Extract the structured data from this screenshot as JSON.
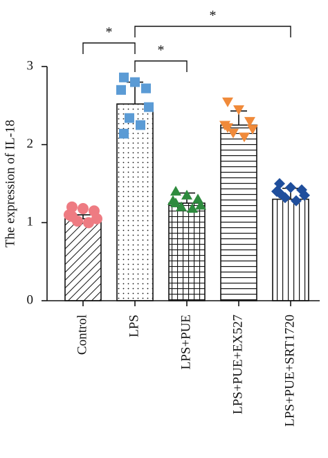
{
  "chart_data": {
    "type": "bar",
    "ylabel": "The expression of IL-18",
    "categories": [
      "Control",
      "LPS",
      "LPS+PUE",
      "LPS+PUE+EX527",
      "LPS+PUE+SRT1720"
    ],
    "values": [
      1.05,
      2.52,
      1.25,
      2.25,
      1.3
    ],
    "errors": [
      0.05,
      0.28,
      0.13,
      0.18,
      0.14
    ],
    "points": [
      [
        1.2,
        1.18,
        1.15,
        1.1,
        1.05,
        1.02,
        1.0,
        1.08
      ],
      [
        2.86,
        2.8,
        2.72,
        2.7,
        2.48,
        2.34,
        2.25,
        2.14
      ],
      [
        1.4,
        1.35,
        1.3,
        1.28,
        1.22,
        1.2,
        1.18,
        1.25
      ],
      [
        2.55,
        2.45,
        2.3,
        2.25,
        2.2,
        2.15,
        2.1,
        2.22
      ],
      [
        1.5,
        1.45,
        1.42,
        1.4,
        1.35,
        1.32,
        1.28,
        1.38
      ]
    ],
    "point_colors": [
      "#ee7b82",
      "#5b9bd5",
      "#2e8b3e",
      "#f08a3a",
      "#1f4e9c"
    ],
    "markers": [
      "circle",
      "square",
      "triangle",
      "triangle-down",
      "diamond"
    ],
    "patterns": [
      "diagonal",
      "dots",
      "grid",
      "horizontal",
      "vertical"
    ],
    "ylim": [
      0,
      3
    ],
    "yticks": [
      0,
      1,
      2,
      3
    ],
    "significance": [
      {
        "label": "*",
        "from": "Control",
        "to": "LPS"
      },
      {
        "label": "*",
        "from": "LPS",
        "to": "LPS+PUE"
      },
      {
        "label": "*",
        "from": "LPS",
        "to": "LPS+PUE+SRT1720"
      }
    ]
  }
}
